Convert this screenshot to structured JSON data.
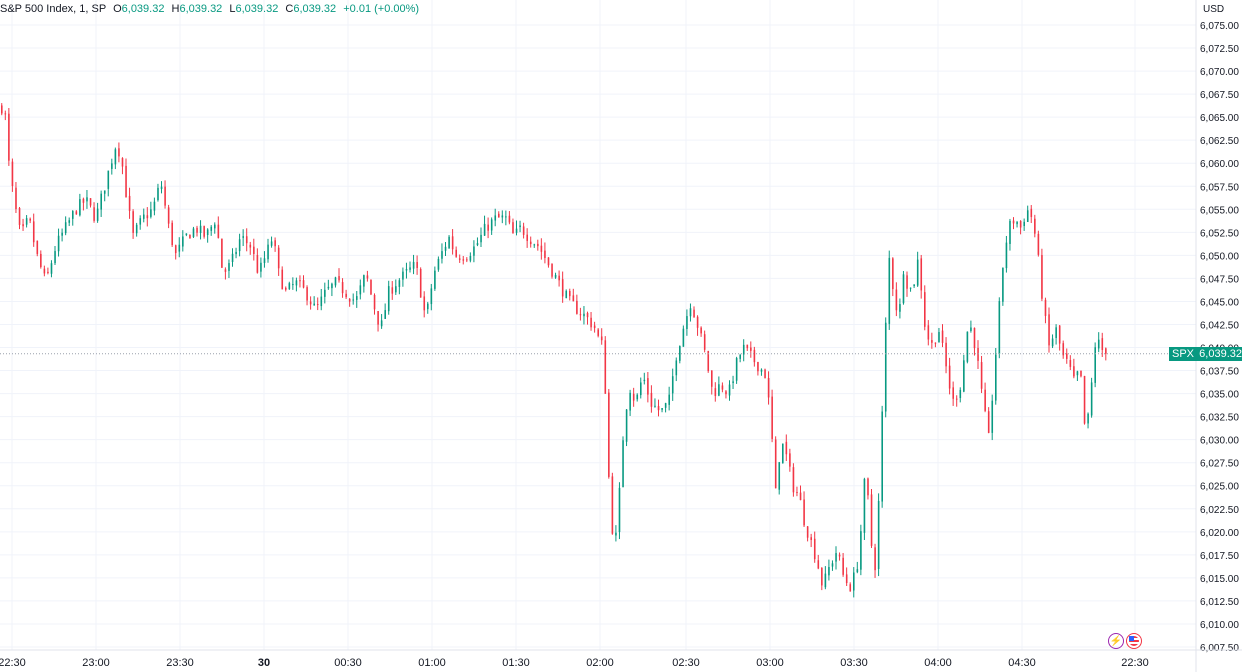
{
  "legend": {
    "symbol": "S&P 500 Index, 1, SP",
    "o_label": "O",
    "o_value": "6,039.32",
    "h_label": "H",
    "h_value": "6,039.32",
    "l_label": "L",
    "l_value": "6,039.32",
    "c_label": "C",
    "c_value": "6,039.32",
    "change": "+0.01 (+0.00%)"
  },
  "currency": "USD",
  "price_badge": {
    "ticker": "SPX",
    "price": "6,039.32"
  },
  "colors": {
    "up": "#089981",
    "down": "#f23645",
    "grid": "#f0f3fa",
    "axis_text": "#131722"
  },
  "icons": [
    "lightning-icon",
    "us-flag-icon"
  ],
  "chart_data": {
    "type": "candlestick",
    "title": "S&P 500 Index, 1, SP",
    "ylabel": "USD",
    "ylim": [
      6006.5,
      6076.5
    ],
    "y_ticks": [
      "6,075.00",
      "6,072.50",
      "6,070.00",
      "6,067.50",
      "6,065.00",
      "6,062.50",
      "6,060.00",
      "6,057.50",
      "6,055.00",
      "6,052.50",
      "6,050.00",
      "6,047.50",
      "6,045.00",
      "6,042.50",
      "6,040.00",
      "6,037.50",
      "6,035.00",
      "6,032.50",
      "6,030.00",
      "6,027.50",
      "6,025.00",
      "6,022.50",
      "6,020.00",
      "6,017.50",
      "6,015.00",
      "6,012.50",
      "6,010.00",
      "6,007.50"
    ],
    "x_ticks": [
      "22:30",
      "23:00",
      "23:30",
      "30",
      "00:30",
      "01:00",
      "01:30",
      "02:00",
      "02:30",
      "03:00",
      "03:30",
      "04:00",
      "04:30",
      "22:30"
    ],
    "last_price": 6039.32,
    "grid": true,
    "path": [
      [
        0,
        6065.5
      ],
      [
        3,
        6067.3
      ],
      [
        8,
        6060
      ],
      [
        13,
        6056
      ],
      [
        20,
        6052
      ],
      [
        28,
        6054
      ],
      [
        36,
        6050
      ],
      [
        45,
        6047
      ],
      [
        55,
        6051
      ],
      [
        65,
        6053
      ],
      [
        75,
        6055
      ],
      [
        85,
        6056
      ],
      [
        95,
        6054
      ],
      [
        105,
        6058
      ],
      [
        115,
        6062
      ],
      [
        120,
        6061
      ],
      [
        125,
        6057
      ],
      [
        132,
        6052
      ],
      [
        142,
        6054
      ],
      [
        152,
        6055
      ],
      [
        160,
        6058
      ],
      [
        168,
        6053
      ],
      [
        175,
        6050
      ],
      [
        185,
        6052
      ],
      [
        195,
        6053
      ],
      [
        205,
        6052
      ],
      [
        215,
        6054
      ],
      [
        222,
        6048
      ],
      [
        230,
        6049
      ],
      [
        240,
        6052
      ],
      [
        250,
        6051
      ],
      [
        258,
        6048
      ],
      [
        265,
        6050
      ],
      [
        272,
        6052
      ],
      [
        278,
        6048
      ],
      [
        285,
        6046
      ],
      [
        295,
        6047
      ],
      [
        305,
        6046
      ],
      [
        315,
        6044
      ],
      [
        325,
        6046
      ],
      [
        335,
        6047
      ],
      [
        345,
        6046
      ],
      [
        355,
        6045
      ],
      [
        365,
        6048
      ],
      [
        372,
        6045
      ],
      [
        380,
        6042
      ],
      [
        388,
        6046
      ],
      [
        395,
        6047
      ],
      [
        405,
        6048
      ],
      [
        415,
        6049
      ],
      [
        425,
        6043
      ],
      [
        433,
        6048
      ],
      [
        440,
        6050
      ],
      [
        448,
        6052
      ],
      [
        455,
        6050
      ],
      [
        465,
        6050
      ],
      [
        475,
        6051
      ],
      [
        485,
        6053
      ],
      [
        495,
        6054
      ],
      [
        505,
        6054
      ],
      [
        513,
        6052
      ],
      [
        520,
        6053
      ],
      [
        528,
        6052
      ],
      [
        538,
        6051
      ],
      [
        548,
        6049
      ],
      [
        558,
        6047
      ],
      [
        568,
        6045
      ],
      [
        578,
        6044
      ],
      [
        588,
        6043
      ],
      [
        595,
        6042
      ],
      [
        600,
        6040
      ],
      [
        603,
        6041
      ],
      [
        606,
        6030
      ],
      [
        610,
        6022
      ],
      [
        614,
        6018
      ],
      [
        618,
        6023
      ],
      [
        622,
        6030
      ],
      [
        628,
        6036
      ],
      [
        635,
        6034
      ],
      [
        642,
        6037
      ],
      [
        650,
        6034
      ],
      [
        660,
        6033
      ],
      [
        668,
        6034
      ],
      [
        675,
        6039
      ],
      [
        682,
        6042
      ],
      [
        690,
        6045
      ],
      [
        698,
        6042
      ],
      [
        705,
        6039
      ],
      [
        712,
        6035
      ],
      [
        720,
        6036
      ],
      [
        728,
        6035
      ],
      [
        735,
        6038
      ],
      [
        742,
        6040
      ],
      [
        750,
        6039
      ],
      [
        758,
        6038
      ],
      [
        765,
        6037
      ],
      [
        770,
        6032
      ],
      [
        775,
        6024
      ],
      [
        780,
        6030
      ],
      [
        786,
        6028
      ],
      [
        792,
        6025
      ],
      [
        798,
        6024
      ],
      [
        804,
        6021
      ],
      [
        810,
        6019
      ],
      [
        816,
        6017
      ],
      [
        822,
        6014
      ],
      [
        828,
        6016
      ],
      [
        836,
        6018
      ],
      [
        843,
        6015
      ],
      [
        850,
        6014
      ],
      [
        856,
        6016
      ],
      [
        860,
        6020
      ],
      [
        865,
        6027
      ],
      [
        870,
        6019
      ],
      [
        875,
        6016
      ],
      [
        879,
        6026
      ],
      [
        884,
        6040
      ],
      [
        888,
        6050
      ],
      [
        893,
        6046
      ],
      [
        898,
        6043
      ],
      [
        903,
        6049
      ],
      [
        908,
        6046
      ],
      [
        913,
        6047
      ],
      [
        918,
        6050
      ],
      [
        923,
        6043
      ],
      [
        930,
        6040
      ],
      [
        938,
        6042
      ],
      [
        945,
        6038
      ],
      [
        952,
        6034
      ],
      [
        960,
        6036
      ],
      [
        968,
        6043
      ],
      [
        975,
        6040
      ],
      [
        982,
        6034
      ],
      [
        988,
        6030
      ],
      [
        994,
        6038
      ],
      [
        999,
        6045
      ],
      [
        1003,
        6050
      ],
      [
        1008,
        6053
      ],
      [
        1014,
        6054
      ],
      [
        1020,
        6053
      ],
      [
        1026,
        6055
      ],
      [
        1032,
        6054
      ],
      [
        1037,
        6050
      ],
      [
        1042,
        6045
      ],
      [
        1048,
        6040
      ],
      [
        1055,
        6042
      ],
      [
        1062,
        6039
      ],
      [
        1068,
        6038
      ],
      [
        1074,
        6036
      ],
      [
        1079,
        6038
      ],
      [
        1085,
        6030
      ],
      [
        1090,
        6035
      ],
      [
        1095,
        6041
      ],
      [
        1100,
        6040
      ],
      [
        1104,
        6039.3
      ],
      [
        1107,
        6039.32
      ]
    ]
  }
}
